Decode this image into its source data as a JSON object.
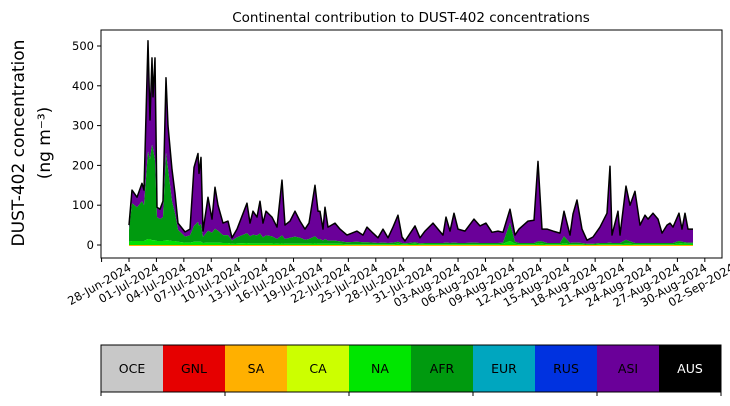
{
  "chart_data": {
    "type": "area",
    "title": "Continental contribution to DUST-402 concentrations",
    "ylabel_line1": "DUST-402 concentration",
    "ylabel_line2": "(ng m⁻³)",
    "xlabel": "",
    "x_unit": "days since 28-Jun-2024",
    "ylim": [
      -30,
      540
    ],
    "yticks": [
      0,
      100,
      200,
      300,
      400,
      500
    ],
    "xtick_labels": [
      "28-Jun-2024",
      "01-Jul-2024",
      "04-Jul-2024",
      "07-Jul-2024",
      "10-Jul-2024",
      "13-Jul-2024",
      "16-Jul-2024",
      "19-Jul-2024",
      "22-Jul-2024",
      "25-Jul-2024",
      "28-Jul-2024",
      "31-Jul-2024",
      "03-Aug-2024",
      "06-Aug-2024",
      "09-Aug-2024",
      "12-Aug-2024",
      "15-Aug-2024",
      "18-Aug-2024",
      "21-Aug-2024",
      "24-Aug-2024",
      "27-Aug-2024",
      "30-Aug-2024",
      "02-Sep-2024"
    ],
    "xtick_step_days": 3,
    "x": [
      0,
      0.33,
      0.88,
      1.42,
      1.64,
      2.08,
      2.3,
      2.52,
      2.63,
      2.84,
      3.06,
      3.39,
      3.72,
      4.05,
      4.27,
      4.7,
      5.03,
      5.36,
      6.13,
      6.67,
      7.11,
      7.55,
      7.66,
      7.88,
      8.1,
      8.64,
      9.08,
      9.41,
      9.74,
      10.28,
      10.83,
      11.27,
      11.82,
      12.91,
      13.24,
      13.57,
      14.0,
      14.33,
      14.66,
      14.99,
      15.65,
      16.19,
      16.74,
      17.07,
      17.61,
      18.16,
      18.71,
      19.26,
      19.69,
      20.35,
      20.68,
      20.9,
      21.23,
      21.44,
      21.77,
      22.54,
      23.09,
      23.85,
      24.95,
      25.6,
      26.04,
      26.7,
      27.24,
      27.79,
      28.34,
      28.88,
      29.43,
      29.87,
      30.2,
      31.29,
      31.84,
      32.39,
      33.26,
      33.81,
      34.35,
      34.68,
      35.12,
      35.56,
      36.0,
      36.76,
      37.75,
      38.4,
      39.06,
      39.72,
      40.37,
      40.92,
      41.68,
      42.23,
      42.67,
      43.65,
      44.31,
      44.75,
      45.19,
      45.73,
      46.39,
      47.16,
      47.59,
      48.25,
      48.58,
      49.02,
      49.56,
      50.11,
      50.77,
      51.53,
      52.3,
      52.63,
      52.84,
      53.5,
      53.72,
      54.38,
      54.81,
      55.36,
      55.91,
      56.46,
      56.78,
      57.33,
      57.88,
      58.32,
      58.86,
      59.19,
      59.52,
      60.18,
      60.5,
      60.83,
      61.16,
      61.71
    ],
    "total": [
      50,
      138,
      120,
      155,
      138,
      513,
      314,
      470,
      372,
      470,
      95,
      90,
      110,
      420,
      300,
      190,
      130,
      55,
      33,
      40,
      195,
      230,
      180,
      220,
      35,
      120,
      65,
      145,
      100,
      55,
      60,
      18,
      40,
      105,
      55,
      85,
      70,
      110,
      55,
      85,
      70,
      45,
      163,
      50,
      60,
      85,
      60,
      40,
      55,
      150,
      85,
      85,
      40,
      95,
      45,
      55,
      40,
      25,
      35,
      25,
      45,
      30,
      18,
      40,
      18,
      45,
      75,
      20,
      10,
      48,
      18,
      35,
      55,
      40,
      25,
      70,
      35,
      80,
      40,
      35,
      65,
      48,
      55,
      32,
      35,
      32,
      90,
      25,
      40,
      60,
      62,
      210,
      40,
      40,
      35,
      30,
      85,
      25,
      78,
      113,
      40,
      12,
      20,
      45,
      80,
      198,
      25,
      85,
      25,
      148,
      100,
      135,
      50,
      75,
      65,
      80,
      65,
      30,
      50,
      55,
      45,
      80,
      40,
      80,
      40,
      40
    ],
    "series": [
      {
        "name": "NA",
        "color": "#00e000",
        "values": [
          8,
          10,
          10,
          10,
          10,
          15,
          15,
          12,
          12,
          12,
          10,
          10,
          10,
          12,
          12,
          10,
          10,
          8,
          6,
          6,
          8,
          8,
          8,
          8,
          5,
          6,
          6,
          6,
          6,
          5,
          5,
          3,
          4,
          5,
          4,
          4,
          4,
          4,
          4,
          4,
          4,
          3,
          4,
          3,
          3,
          3,
          3,
          3,
          3,
          4,
          3,
          3,
          3,
          3,
          3,
          3,
          3,
          2,
          2,
          2,
          2,
          2,
          2,
          2,
          2,
          2,
          3,
          2,
          2,
          3,
          2,
          2,
          2,
          2,
          2,
          2,
          2,
          2,
          2,
          2,
          2,
          2,
          2,
          2,
          2,
          3,
          10,
          3,
          2,
          2,
          2,
          4,
          3,
          2,
          2,
          2,
          4,
          2,
          2,
          2,
          2,
          1,
          1,
          2,
          2,
          2,
          2,
          2,
          2,
          3,
          3,
          2,
          2,
          2,
          2,
          2,
          2,
          2,
          2,
          2,
          2,
          4,
          4,
          3,
          3,
          3
        ]
      },
      {
        "name": "AFR",
        "color": "#009a0f",
        "values": [
          30,
          95,
          85,
          100,
          90,
          220,
          200,
          240,
          230,
          200,
          60,
          55,
          60,
          220,
          180,
          100,
          70,
          30,
          15,
          18,
          40,
          50,
          40,
          45,
          15,
          30,
          25,
          35,
          30,
          20,
          20,
          8,
          15,
          25,
          18,
          22,
          20,
          25,
          15,
          20,
          18,
          12,
          20,
          12,
          15,
          18,
          15,
          10,
          12,
          18,
          12,
          12,
          8,
          12,
          8,
          8,
          6,
          5,
          6,
          5,
          5,
          4,
          3,
          4,
          3,
          4,
          5,
          3,
          2,
          4,
          2,
          3,
          3,
          3,
          3,
          4,
          3,
          4,
          3,
          3,
          4,
          3,
          3,
          3,
          3,
          3,
          45,
          5,
          3,
          3,
          3,
          5,
          6,
          3,
          3,
          3,
          18,
          3,
          4,
          4,
          3,
          2,
          2,
          3,
          3,
          4,
          3,
          3,
          3,
          10,
          6,
          3,
          3,
          3,
          3,
          3,
          3,
          3,
          3,
          3,
          3,
          6,
          4,
          4,
          3,
          3
        ]
      },
      {
        "name": "ASI",
        "color": "#6a0099",
        "values_note": "remainder up to total"
      }
    ],
    "total_line_color": "#000000",
    "colorbar": {
      "labels": [
        "OCE",
        "GNL",
        "SA",
        "CA",
        "NA",
        "AFR",
        "EUR",
        "RUS",
        "ASI",
        "AUS"
      ],
      "colors": [
        "#c8c8c8",
        "#e60000",
        "#ffb000",
        "#ccff00",
        "#00e600",
        "#009a0f",
        "#00a6bf",
        "#0032e0",
        "#6a0099",
        "#000000"
      ],
      "text_colors": [
        "#000",
        "#000",
        "#000",
        "#000",
        "#000",
        "#000",
        "#000",
        "#000",
        "#000",
        "#fff"
      ]
    }
  }
}
